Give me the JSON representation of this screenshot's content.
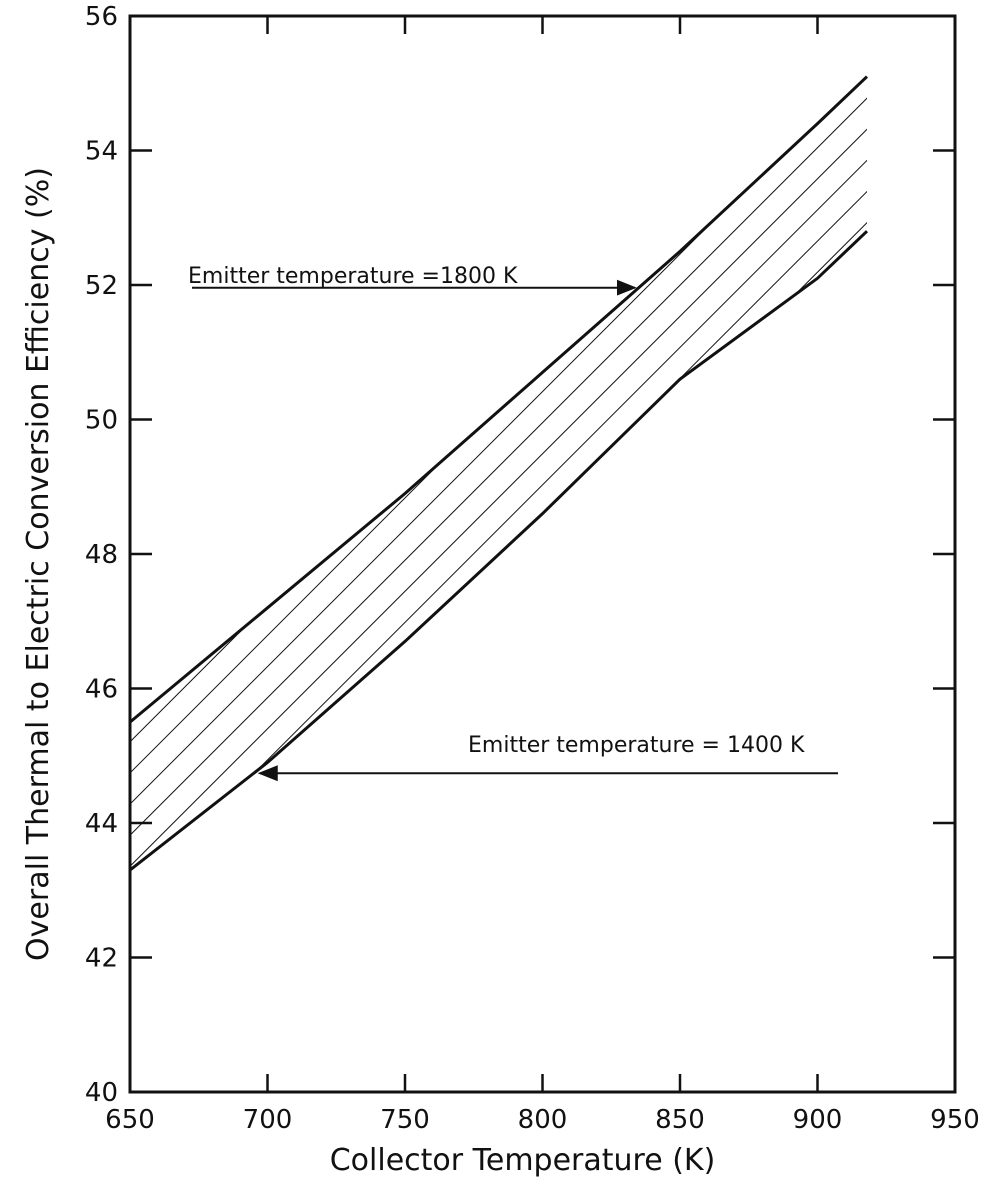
{
  "chart_data": {
    "type": "area",
    "title": "",
    "xlabel": "Collector Temperature (K)",
    "ylabel": "Overall Thermal to Electric Conversion Efficiency (%)",
    "xlim": [
      650,
      950
    ],
    "ylim": [
      40,
      56
    ],
    "x_ticks": [
      "650",
      "700",
      "750",
      "800",
      "850",
      "900",
      "950"
    ],
    "y_ticks": [
      "40",
      "42",
      "44",
      "46",
      "48",
      "50",
      "52",
      "54",
      "56"
    ],
    "grid": false,
    "series": [
      {
        "name": "Emitter temperature =1800 K",
        "x": [
          650,
          700,
          750,
          800,
          850,
          900,
          918
        ],
        "y": [
          45.5,
          47.2,
          48.9,
          50.7,
          52.5,
          54.4,
          55.1
        ]
      },
      {
        "name": "Emitter temperature = 1400 K",
        "x": [
          650,
          700,
          750,
          800,
          850,
          900,
          918
        ],
        "y": [
          43.3,
          44.9,
          46.7,
          48.6,
          50.6,
          52.1,
          52.8
        ]
      }
    ],
    "annotations": [
      {
        "text": "Emitter temperature =1800 K",
        "series": 0,
        "arrow_to_x": 835
      },
      {
        "text": "Emitter temperature = 1400 K",
        "series": 1,
        "arrow_to_x": 695
      }
    ]
  }
}
